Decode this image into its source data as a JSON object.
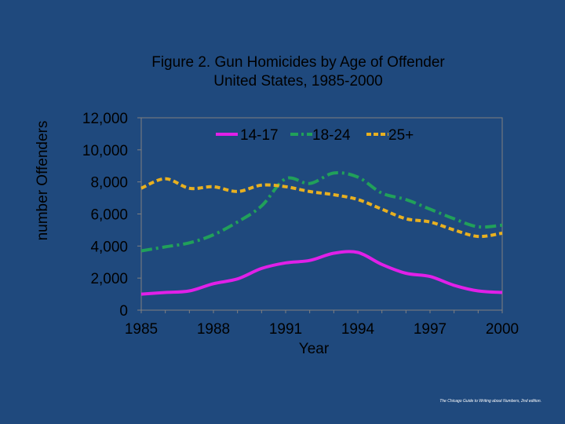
{
  "slide": {
    "background": "#1f497d",
    "credit": "The Chicago Guide to Writing about Numbers, 2nd edition."
  },
  "chart_data": {
    "type": "line",
    "title": "Figure 2. Gun Homicides by Age of Offender",
    "subtitle": "United States, 1985-2000",
    "xlabel": "Year",
    "ylabel": "number Offenders",
    "x": [
      1985,
      1986,
      1987,
      1988,
      1989,
      1990,
      1991,
      1992,
      1993,
      1994,
      1995,
      1996,
      1997,
      1998,
      1999,
      2000
    ],
    "xlim": [
      1985,
      2000
    ],
    "ylim": [
      0,
      12000
    ],
    "xticks": [
      1985,
      1988,
      1991,
      1994,
      1997,
      2000
    ],
    "xtick_labels": [
      "1985",
      "1988",
      "1991",
      "1994",
      "1997",
      "2000"
    ],
    "yticks": [
      0,
      2000,
      4000,
      6000,
      8000,
      10000,
      12000
    ],
    "ytick_labels": [
      "0",
      "2,000",
      "4,000",
      "6,000",
      "8,000",
      "10,000",
      "12,000"
    ],
    "legend_position": "top",
    "grid": false,
    "plot_background": "#1f497d",
    "series": [
      {
        "name": "14-17",
        "color": "#e020e8",
        "dash": "solid",
        "values": [
          1000,
          1100,
          1200,
          1650,
          1950,
          2600,
          2950,
          3100,
          3550,
          3600,
          2850,
          2300,
          2100,
          1550,
          1200,
          1100
        ]
      },
      {
        "name": "18-24",
        "color": "#21a05a",
        "dash": "dashdot",
        "values": [
          3700,
          3950,
          4200,
          4700,
          5500,
          6500,
          8200,
          7900,
          8550,
          8300,
          7300,
          6900,
          6300,
          5700,
          5200,
          5300
        ]
      },
      {
        "name": "25+",
        "color": "#e8b020",
        "dash": "dotted",
        "values": [
          7600,
          8200,
          7600,
          7700,
          7400,
          7800,
          7700,
          7400,
          7200,
          6900,
          6300,
          5700,
          5500,
          5000,
          4600,
          4800
        ]
      }
    ]
  }
}
